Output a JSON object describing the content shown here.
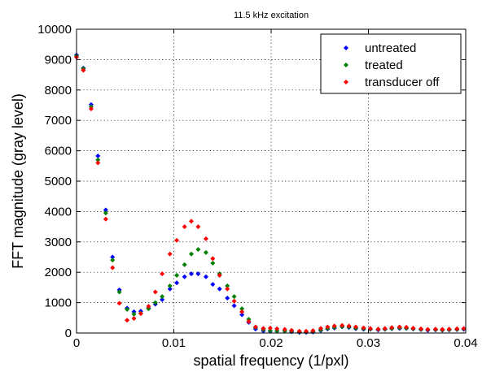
{
  "chart_data": {
    "type": "scatter",
    "title": "11.5 kHz excitation",
    "xlabel": "spatial frequency (1/pxl)",
    "ylabel": "FFT magnitude (gray level)",
    "xlim": [
      0,
      0.04
    ],
    "ylim": [
      0,
      10000
    ],
    "xticks": [
      0,
      0.01,
      0.02,
      0.03,
      0.04
    ],
    "xtick_labels": [
      "0",
      "0.01",
      "0.02",
      "0.03",
      "0.04"
    ],
    "yticks": [
      0,
      1000,
      2000,
      3000,
      4000,
      5000,
      6000,
      7000,
      8000,
      9000,
      10000
    ],
    "ytick_labels": [
      "0",
      "1000",
      "2000",
      "3000",
      "4000",
      "5000",
      "6000",
      "7000",
      "8000",
      "9000",
      "10000"
    ],
    "grid": true,
    "legend_position": "top-right",
    "marker": "diamond",
    "series": [
      {
        "name": "untreated",
        "color": "#0000ff",
        "x": [
          0.0,
          0.0007,
          0.0015,
          0.0022,
          0.003,
          0.0037,
          0.0044,
          0.0052,
          0.0059,
          0.0066,
          0.0074,
          0.0081,
          0.0088,
          0.0096,
          0.0103,
          0.0111,
          0.0118,
          0.0125,
          0.0133,
          0.014,
          0.0147,
          0.0155,
          0.0162,
          0.017,
          0.0177,
          0.0184,
          0.0192,
          0.0199,
          0.0206,
          0.0214,
          0.0221,
          0.0229,
          0.0236,
          0.0243,
          0.0251,
          0.0258,
          0.0265,
          0.0273,
          0.028,
          0.0287,
          0.0295,
          0.0302,
          0.031,
          0.0317,
          0.0324,
          0.0332,
          0.0339,
          0.0346,
          0.0354,
          0.0361,
          0.0369,
          0.0376,
          0.0383,
          0.0391,
          0.0398
        ],
        "y": [
          9150,
          8720,
          7520,
          5830,
          4050,
          2500,
          1420,
          820,
          700,
          720,
          820,
          950,
          1100,
          1450,
          1650,
          1850,
          1950,
          1950,
          1850,
          1600,
          1450,
          1150,
          900,
          600,
          350,
          130,
          70,
          60,
          60,
          60,
          40,
          20,
          20,
          30,
          80,
          130,
          160,
          200,
          180,
          140,
          120,
          120,
          100,
          120,
          140,
          150,
          150,
          130,
          110,
          90,
          100,
          90,
          100,
          110,
          120
        ]
      },
      {
        "name": "treated",
        "color": "#008000",
        "x": [
          0.0,
          0.0007,
          0.0015,
          0.0022,
          0.003,
          0.0037,
          0.0044,
          0.0052,
          0.0059,
          0.0066,
          0.0074,
          0.0081,
          0.0088,
          0.0096,
          0.0103,
          0.0111,
          0.0118,
          0.0125,
          0.0133,
          0.014,
          0.0147,
          0.0155,
          0.0162,
          0.017,
          0.0177,
          0.0184,
          0.0192,
          0.0199,
          0.0206,
          0.0214,
          0.0221,
          0.0229,
          0.0236,
          0.0243,
          0.0251,
          0.0258,
          0.0265,
          0.0273,
          0.028,
          0.0287,
          0.0295,
          0.0302,
          0.031,
          0.0317,
          0.0324,
          0.0332,
          0.0339,
          0.0346,
          0.0354,
          0.0361,
          0.0369,
          0.0376,
          0.0383,
          0.0391,
          0.0398
        ],
        "y": [
          9120,
          8700,
          7450,
          5700,
          3950,
          2400,
          1350,
          780,
          620,
          650,
          800,
          1000,
          1200,
          1550,
          1900,
          2250,
          2600,
          2750,
          2650,
          2300,
          1950,
          1550,
          1200,
          800,
          450,
          180,
          110,
          80,
          70,
          70,
          60,
          40,
          40,
          50,
          100,
          150,
          180,
          210,
          200,
          160,
          140,
          130,
          120,
          130,
          150,
          170,
          160,
          140,
          120,
          110,
          110,
          100,
          110,
          120,
          140
        ]
      },
      {
        "name": "transducer off",
        "color": "#ff0000",
        "x": [
          0.0,
          0.0007,
          0.0015,
          0.0022,
          0.003,
          0.0037,
          0.0044,
          0.0052,
          0.0059,
          0.0066,
          0.0074,
          0.0081,
          0.0088,
          0.0096,
          0.0103,
          0.0111,
          0.0118,
          0.0125,
          0.0133,
          0.014,
          0.0147,
          0.0155,
          0.0162,
          0.017,
          0.0177,
          0.0184,
          0.0192,
          0.0199,
          0.0206,
          0.0214,
          0.0221,
          0.0229,
          0.0236,
          0.0243,
          0.0251,
          0.0258,
          0.0265,
          0.0273,
          0.028,
          0.0287,
          0.0295,
          0.0302,
          0.031,
          0.0317,
          0.0324,
          0.0332,
          0.0339,
          0.0346,
          0.0354,
          0.0361,
          0.0369,
          0.0376,
          0.0383,
          0.0391,
          0.0398
        ],
        "y": [
          9080,
          8650,
          7380,
          5600,
          3750,
          2150,
          980,
          420,
          480,
          640,
          880,
          1350,
          1950,
          2600,
          3050,
          3500,
          3680,
          3500,
          3100,
          2450,
          1900,
          1450,
          1050,
          700,
          380,
          200,
          150,
          160,
          140,
          120,
          90,
          60,
          60,
          80,
          150,
          200,
          230,
          250,
          230,
          200,
          170,
          150,
          130,
          150,
          180,
          200,
          190,
          160,
          140,
          120,
          130,
          120,
          130,
          140,
          150
        ]
      }
    ]
  }
}
